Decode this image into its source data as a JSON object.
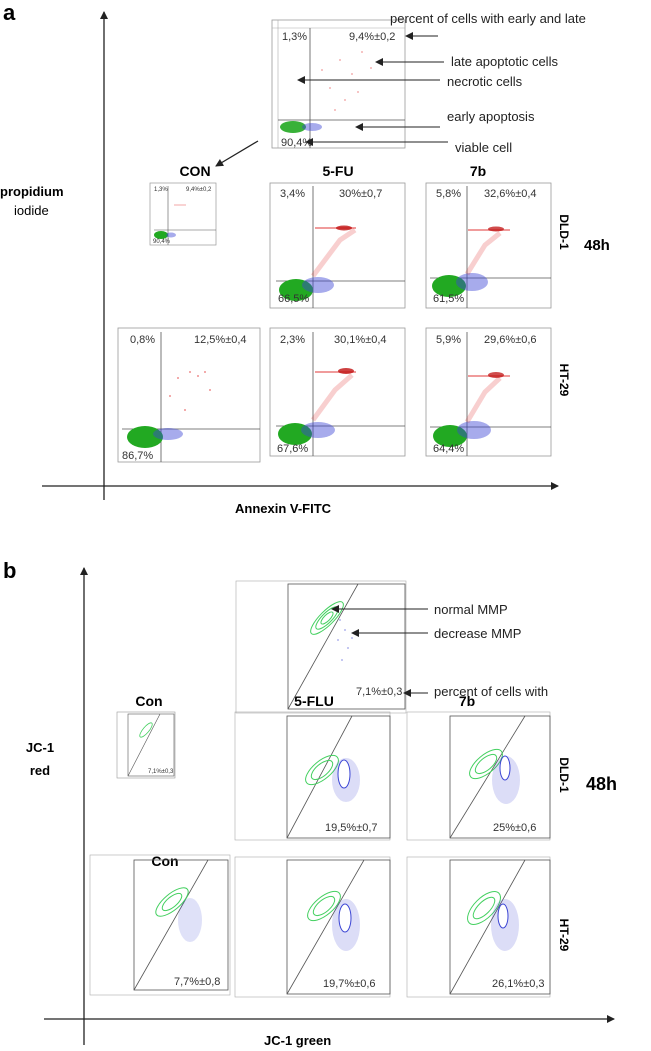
{
  "panel_a": {
    "letter": "a",
    "y_axis_label_line1": "propidium",
    "y_axis_label_line2": "iodide",
    "x_axis_label": "Annexin V-FITC",
    "columns": [
      "CON",
      "5-FU",
      "7b"
    ],
    "rows": [
      "DLD-1",
      "HT-29"
    ],
    "time": "48h",
    "legend": {
      "top_left": "1,3%",
      "top_right": "9,4%±0,2",
      "bottom_left": "90,4%",
      "notes": [
        "percent of cells with early and late",
        "late apoptotic cells",
        "necrotic cells",
        "early apoptosis",
        "viable cell"
      ]
    },
    "plots": {
      "dld1_con": {
        "tl": "1,3%",
        "tr": "9,4%±0,2",
        "bl": "90,4%"
      },
      "dld1_5fu": {
        "tl": "3,4%",
        "tr": "30%±0,7",
        "bl": "66,5%"
      },
      "dld1_7b": {
        "tl": "5,8%",
        "tr": "32,6%±0,4",
        "bl": "61,5%"
      },
      "ht29_con": {
        "tl": "0,8%",
        "tr": "12,5%±0,4",
        "bl": "86,7%"
      },
      "ht29_5fu": {
        "tl": "2,3%",
        "tr": "30,1%±0,4",
        "bl": "67,6%"
      },
      "ht29_7b": {
        "tl": "5,9%",
        "tr": "29,6%±0,6",
        "bl": "64,4%"
      }
    }
  },
  "panel_b": {
    "letter": "b",
    "y_axis_label_line1": "JC-1",
    "y_axis_label_line2": "red",
    "x_axis_label": "JC-1 green",
    "columns": [
      "Con",
      "5-FLU",
      "7b"
    ],
    "row2_column1": "Con",
    "rows": [
      "DLD-1",
      "HT-29"
    ],
    "time": "48h",
    "legend": {
      "value": "7,1%±0,3",
      "notes": [
        "normal MMP",
        "decrease MMP",
        "percent of cells with"
      ]
    },
    "plots": {
      "dld1_con": "7,1%±0,3",
      "dld1_5flu": "19,5%±0,7",
      "dld1_7b": "25%±0,6",
      "ht29_con": "7,7%±0,8",
      "ht29_5flu": "19,7%±0,6",
      "ht29_7b": "26,1%±0,3"
    }
  },
  "colors": {
    "live": "#22a922",
    "early": "#3b45d4",
    "late": "#e02424",
    "contour": "#44d060",
    "axis": "#222222"
  }
}
